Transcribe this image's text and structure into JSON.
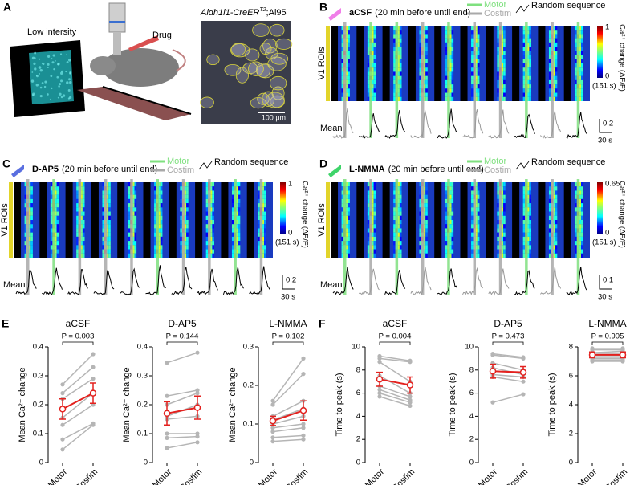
{
  "panel_a": {
    "label": "A",
    "imaging_note": "Low intersity",
    "drug": "Drug",
    "genotype": "Aldh1l1-CreER",
    "genotype_sup": "T2",
    "genotype_suffix": ";Ai95",
    "scale_bar": "100 μm"
  },
  "heatmap_panels": [
    {
      "label": "B",
      "drug": "aCSF",
      "note": "(20 min before until end)",
      "legend": [
        "Motor",
        "Costim"
      ],
      "legend_colors": [
        "#7fe07f",
        "#a9a9a9"
      ],
      "trace_colors": [
        "#000000",
        "#999999"
      ],
      "marker_color": "#f07ee8",
      "sequence_note": "Random sequence",
      "roi_label": "V1 ROIs",
      "colorbar_max": 1,
      "colorbar_min": 0,
      "duration": "(151 s)",
      "colorbar_label": "Ca²⁺ change (ΔF/F)",
      "mean_label": "Mean",
      "scale_y": 0.2,
      "scale_x": "30 s",
      "trials": [
        1,
        0,
        0,
        1,
        0,
        1,
        1,
        0,
        1,
        0
      ]
    },
    {
      "label": "C",
      "drug": "D-AP5",
      "note": "(20 min before until end)",
      "legend": [
        "Motor",
        "Costim"
      ],
      "legend_colors": [
        "#7fe07f",
        "#a9a9a9"
      ],
      "trace_colors": [
        "#000000",
        "#000000"
      ],
      "marker_color": "#5a6fe0",
      "sequence_note": "Random sequence",
      "roi_label": "V1 ROIs",
      "colorbar_max": 1,
      "colorbar_min": 0,
      "duration": "(151 s)",
      "colorbar_label": "Ca²⁺ change (ΔF/F)",
      "mean_label": "Mean",
      "scale_y": 0.2,
      "scale_x": "30 s",
      "trials": [
        1,
        0,
        1,
        1,
        1,
        0,
        1,
        1,
        0,
        1
      ]
    },
    {
      "label": "D",
      "drug": "L-NMMA",
      "note": "(20 min before until end)",
      "legend": [
        "Motor",
        "Costim"
      ],
      "legend_colors": [
        "#7fe07f",
        "#a9a9a9"
      ],
      "trace_colors": [
        "#000000",
        "#999999"
      ],
      "marker_color": "#3fd46a",
      "sequence_note": "Random sequence",
      "roi_label": "V1 ROIs",
      "colorbar_max": 0.65,
      "colorbar_min": 0,
      "duration": "(151 s)",
      "colorbar_label": "Ca²⁺ change (ΔF/F)",
      "mean_label": "Mean",
      "scale_y": 0.1,
      "scale_x": "30 s",
      "trials": [
        0,
        1,
        0,
        1,
        0,
        1,
        1,
        0,
        1,
        0
      ]
    }
  ],
  "chart_data": [
    {
      "type": "paired",
      "panel_label": "E",
      "title": "aCSF",
      "p_label": "P = 0.003",
      "y_label": "Mean Ca²⁺ change",
      "categories": [
        "Motor",
        "Costim"
      ],
      "ylim": [
        0,
        0.4
      ],
      "yticks": [
        0,
        0.1,
        0.2,
        0.3,
        0.4
      ],
      "pair_color": "#b5b5b5",
      "mean_color": "#e3211e",
      "subjects": [
        [
          0.27,
          0.375
        ],
        [
          0.24,
          0.33
        ],
        [
          0.22,
          0.29
        ],
        [
          0.155,
          0.24
        ],
        [
          0.13,
          0.2
        ],
        [
          0.08,
          0.135
        ],
        [
          0.045,
          0.13
        ]
      ],
      "mean": [
        0.185,
        0.24
      ],
      "error": [
        0.035,
        0.035
      ]
    },
    {
      "type": "paired",
      "title": "D-AP5",
      "p_label": "P = 0.144",
      "y_label": "Mean Ca²⁺ change",
      "categories": [
        "Motor",
        "Costim"
      ],
      "ylim": [
        0,
        0.4
      ],
      "yticks": [
        0,
        0.1,
        0.2,
        0.3,
        0.4
      ],
      "pair_color": "#b5b5b5",
      "mean_color": "#e3211e",
      "subjects": [
        [
          0.345,
          0.38
        ],
        [
          0.23,
          0.25
        ],
        [
          0.2,
          0.24
        ],
        [
          0.16,
          0.2
        ],
        [
          0.15,
          0.16
        ],
        [
          0.1,
          0.1
        ],
        [
          0.085,
          0.09
        ],
        [
          0.05,
          0.07
        ]
      ],
      "mean": [
        0.17,
        0.19
      ],
      "error": [
        0.04,
        0.04
      ]
    },
    {
      "type": "paired",
      "title": "L-NMMA",
      "p_label": "P = 0.102",
      "y_label": "Mean Ca²⁺ change",
      "categories": [
        "Motor",
        "Costim"
      ],
      "ylim": [
        0,
        0.3
      ],
      "yticks": [
        0,
        0.1,
        0.2,
        0.3
      ],
      "pair_color": "#b5b5b5",
      "mean_color": "#e3211e",
      "subjects": [
        [
          0.16,
          0.27
        ],
        [
          0.15,
          0.23
        ],
        [
          0.12,
          0.16
        ],
        [
          0.11,
          0.14
        ],
        [
          0.1,
          0.12
        ],
        [
          0.09,
          0.1
        ],
        [
          0.08,
          0.09
        ],
        [
          0.065,
          0.07
        ],
        [
          0.055,
          0.06
        ]
      ],
      "mean": [
        0.108,
        0.135
      ],
      "error": [
        0.012,
        0.025
      ]
    },
    {
      "type": "paired",
      "panel_label": "F",
      "title": "aCSF",
      "p_label": "P = 0.004",
      "y_label": "Time to peak (s)",
      "categories": [
        "Motor",
        "Costim"
      ],
      "ylim": [
        0,
        10
      ],
      "yticks": [
        0,
        2,
        4,
        6,
        8,
        10
      ],
      "pair_color": "#b5b5b5",
      "mean_color": "#e3211e",
      "subjects": [
        [
          9.2,
          8.8
        ],
        [
          9.0,
          8.7
        ],
        [
          8.7,
          7.0
        ],
        [
          7.5,
          6.0
        ],
        [
          6.6,
          5.7
        ],
        [
          6.3,
          5.4
        ],
        [
          6.0,
          5.2
        ],
        [
          5.7,
          4.9
        ]
      ],
      "mean": [
        7.2,
        6.7
      ],
      "error": [
        0.6,
        0.7
      ]
    },
    {
      "type": "paired",
      "title": "D-AP5",
      "p_label": "P = 0.473",
      "y_label": "Time to peak (s)",
      "categories": [
        "Motor",
        "Costim"
      ],
      "ylim": [
        0,
        10
      ],
      "yticks": [
        0,
        2,
        4,
        6,
        8,
        10
      ],
      "pair_color": "#b5b5b5",
      "mean_color": "#e3211e",
      "subjects": [
        [
          9.4,
          9.1
        ],
        [
          9.3,
          9.0
        ],
        [
          8.6,
          8.0
        ],
        [
          8.2,
          7.6
        ],
        [
          7.6,
          7.4
        ],
        [
          7.4,
          7.0
        ],
        [
          5.2,
          5.9
        ]
      ],
      "mean": [
        7.9,
        7.8
      ],
      "error": [
        0.6,
        0.5
      ]
    },
    {
      "type": "paired",
      "title": "L-NMMA",
      "p_label": "P = 0.905",
      "y_label": "Time to peak (s)",
      "categories": [
        "Motor",
        "Costim"
      ],
      "ylim": [
        0,
        8
      ],
      "yticks": [
        0,
        2,
        4,
        6,
        8
      ],
      "pair_color": "#b5b5b5",
      "mean_color": "#e3211e",
      "subjects": [
        [
          7.9,
          7.9
        ],
        [
          7.8,
          7.8
        ],
        [
          7.6,
          7.7
        ],
        [
          7.5,
          7.5
        ],
        [
          7.4,
          7.4
        ],
        [
          7.3,
          7.3
        ],
        [
          7.2,
          7.2
        ],
        [
          7.1,
          7.1
        ],
        [
          7.0,
          7.0
        ]
      ],
      "mean": [
        7.45,
        7.45
      ],
      "error": [
        0.2,
        0.2
      ]
    }
  ]
}
